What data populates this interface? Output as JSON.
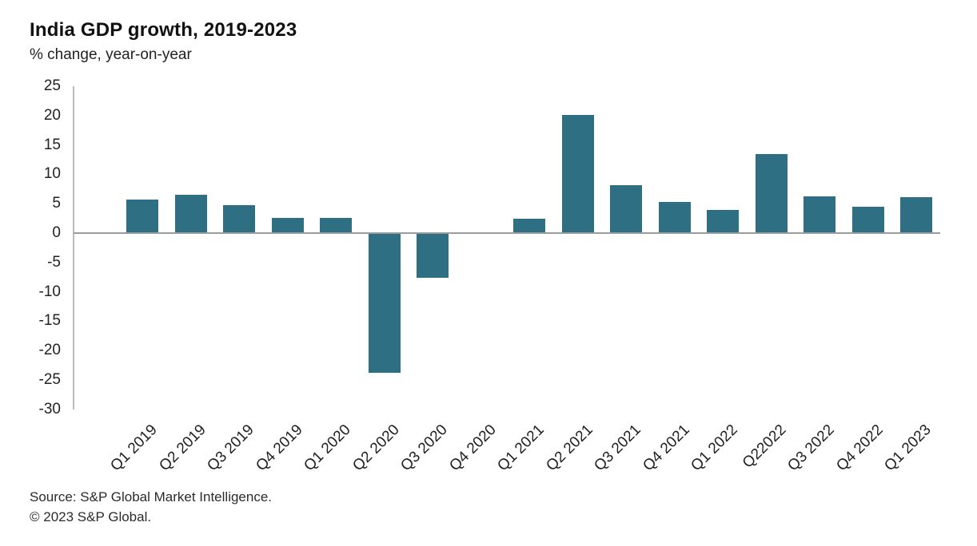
{
  "header": {
    "title": "India GDP growth, 2019-2023",
    "subtitle": "% change, year-on-year"
  },
  "footer": {
    "source": "Source: S&P Global Market Intelligence.",
    "copyright": "© 2023 S&P Global."
  },
  "chart_data": {
    "type": "bar",
    "title": "India GDP growth, 2019-2023",
    "subtitle": "% change, year-on-year",
    "xlabel": "",
    "ylabel": "% change, year-on-year",
    "categories": [
      "Q1 2019",
      "Q2 2019",
      "Q3 2019",
      "Q4 2019",
      "Q1 2020",
      "Q2 2020",
      "Q3 2020",
      "Q4 2020",
      "Q1 2021",
      "Q2 2021",
      "Q3 2021",
      "Q4 2021",
      "Q1 2022",
      "Q22022",
      "Q3 2022",
      "Q4 2022",
      "Q1 2023"
    ],
    "values": [
      5.7,
      6.5,
      4.7,
      2.6,
      2.6,
      -23.8,
      -7.6,
      0.1,
      2.4,
      20.1,
      8.2,
      5.3,
      4.0,
      13.4,
      6.2,
      4.5,
      6.1
    ],
    "ylim": [
      -30,
      25
    ],
    "ytick_step": 5,
    "grid": false,
    "legend": "none",
    "bar_color": "#2e6f83",
    "axis_color": "#bcbcbc",
    "zero_line_color": "#9c9c9c"
  }
}
